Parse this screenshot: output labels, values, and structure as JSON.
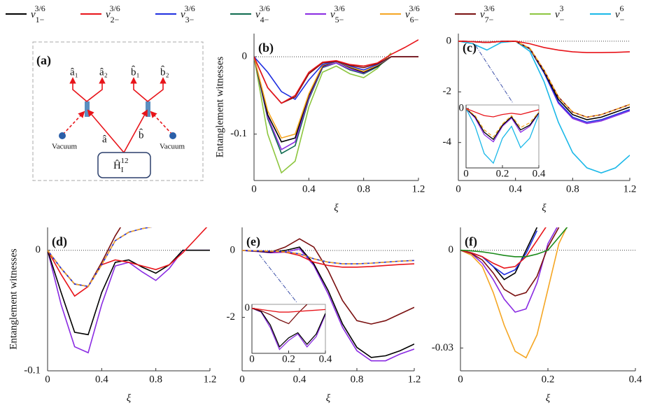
{
  "legend": [
    {
      "name": {
        "base": "v",
        "sub": "1−",
        "sup": "3/6"
      },
      "color": "#000000"
    },
    {
      "name": {
        "base": "v",
        "sub": "2−",
        "sup": "3/6"
      },
      "color": "#e8141a"
    },
    {
      "name": {
        "base": "v",
        "sub": "3−",
        "sup": "3/6"
      },
      "color": "#1f2fe0"
    },
    {
      "name": {
        "base": "v",
        "sub": "4−",
        "sup": "3/6"
      },
      "color": "#0e6b4f"
    },
    {
      "name": {
        "base": "v",
        "sub": "5−",
        "sup": "3/6"
      },
      "color": "#8a2be2"
    },
    {
      "name": {
        "base": "v",
        "sub": "6−",
        "sup": "3/6"
      },
      "color": "#f5a623"
    },
    {
      "name": {
        "base": "v",
        "sub": "7−",
        "sup": "3/6"
      },
      "color": "#7a1010"
    },
    {
      "name": {
        "base": "v",
        "sub": "−",
        "sup": "3"
      },
      "color": "#8dc63f"
    },
    {
      "name": {
        "base": "v",
        "sub": "−",
        "sup": "6"
      },
      "color": "#1ab8e8"
    }
  ],
  "diagram": {
    "label": "(a)",
    "outputs": [
      "â₁",
      "â₂",
      "b̂₁",
      "b̂₂"
    ],
    "modes": [
      "â",
      "b̂"
    ],
    "vacuum": [
      "Vacuum",
      "Vacuum"
    ],
    "hamiltonian": {
      "base": "Ĥ",
      "sub": "I",
      "sup": "12"
    }
  },
  "chart_data": [
    {
      "type": "line",
      "panel": "(b)",
      "ylabel": "Entanglement witnesses",
      "xlabel": "ξ",
      "zero_line": true,
      "x": [
        0,
        0.1,
        0.2,
        0.3,
        0.4,
        0.5,
        0.6,
        0.7,
        0.8,
        0.9,
        1.0,
        1.1,
        1.2
      ],
      "xlim": [
        0,
        1.2
      ],
      "xticks": [
        0,
        0.4,
        0.8,
        1.2
      ],
      "ylim": [
        -0.16,
        0.03
      ],
      "yticks": [
        0,
        -0.1
      ],
      "series": [
        {
          "color": "#8dc63f",
          "values": [
            0,
            -0.1,
            -0.15,
            -0.135,
            -0.065,
            -0.02,
            -0.012,
            -0.022,
            -0.027,
            -0.015,
            0.005,
            null,
            null
          ]
        },
        {
          "color": "#0e6b4f",
          "values": [
            0,
            -0.08,
            -0.125,
            -0.115,
            -0.055,
            -0.014,
            -0.008,
            -0.017,
            -0.022,
            -0.013,
            0,
            0,
            0
          ]
        },
        {
          "color": "#8a2be2",
          "values": [
            0,
            -0.078,
            -0.12,
            -0.11,
            -0.053,
            -0.013,
            -0.008,
            -0.016,
            -0.021,
            -0.012,
            0,
            0,
            0
          ]
        },
        {
          "color": "#000000",
          "values": [
            0,
            -0.075,
            -0.11,
            -0.105,
            -0.05,
            -0.012,
            -0.006,
            -0.014,
            -0.02,
            -0.012,
            0,
            0,
            0
          ]
        },
        {
          "color": "#f5a623",
          "values": [
            0,
            -0.07,
            -0.105,
            -0.1,
            -0.048,
            -0.011,
            -0.006,
            -0.013,
            -0.019,
            -0.011,
            0,
            0,
            0
          ]
        },
        {
          "color": "#1f2fe0",
          "values": [
            0,
            -0.02,
            -0.045,
            -0.055,
            -0.03,
            -0.01,
            -0.006,
            -0.012,
            -0.017,
            -0.01,
            0,
            0,
            0
          ]
        },
        {
          "color": "#7a1010",
          "values": [
            0,
            -0.04,
            -0.06,
            -0.052,
            -0.022,
            -0.008,
            -0.006,
            -0.011,
            -0.014,
            -0.009,
            0,
            0,
            0
          ]
        },
        {
          "color": "#e8141a",
          "values": [
            0,
            -0.04,
            -0.06,
            -0.05,
            -0.02,
            -0.007,
            -0.005,
            -0.01,
            -0.012,
            -0.008,
            0.003,
            0.012,
            0.022
          ]
        }
      ]
    },
    {
      "type": "line",
      "panel": "(c)",
      "xlabel": "ξ",
      "zero_line": true,
      "x": [
        0,
        0.1,
        0.2,
        0.3,
        0.4,
        0.5,
        0.6,
        0.7,
        0.8,
        0.9,
        1.0,
        1.1,
        1.2
      ],
      "xlim": [
        0,
        1.2
      ],
      "xticks": [
        0,
        0.4,
        0.8,
        1.2
      ],
      "ylim": [
        -5.5,
        0.3
      ],
      "yticks": [
        0,
        -2,
        -4
      ],
      "series": [
        {
          "color": "#1ab8e8",
          "values": [
            0,
            -0.1,
            -0.35,
            -0.05,
            0,
            -0.4,
            -1.6,
            -3.2,
            -4.4,
            -5.0,
            -5.2,
            -5.0,
            -4.5
          ]
        },
        {
          "color": "#8a2be2",
          "values": [
            0,
            -0.02,
            -0.05,
            -0.01,
            0,
            -0.3,
            -1.25,
            -2.45,
            -3.05,
            -3.25,
            -3.15,
            -2.95,
            -2.75
          ]
        },
        {
          "color": "#1f2fe0",
          "values": [
            0,
            -0.02,
            -0.05,
            -0.01,
            0,
            -0.3,
            -1.25,
            -2.4,
            -3.0,
            -3.2,
            -3.1,
            -2.9,
            -2.7
          ]
        },
        {
          "color": "#000000",
          "values": [
            0,
            -0.02,
            -0.05,
            -0.01,
            0,
            -0.3,
            -1.2,
            -2.3,
            -2.9,
            -3.1,
            -3.0,
            -2.8,
            -2.6
          ]
        },
        {
          "color": "#7a1010",
          "values": [
            0,
            -0.02,
            -0.05,
            -0.01,
            0,
            -0.28,
            -1.15,
            -2.2,
            -2.8,
            -3.0,
            -2.9,
            -2.7,
            -2.5
          ]
        },
        {
          "color": "#f5a623",
          "dashed": true,
          "values": [
            0,
            -0.02,
            -0.05,
            -0.01,
            0,
            -0.28,
            -1.15,
            -2.2,
            -2.8,
            -3.0,
            -2.9,
            -2.7,
            -2.5
          ]
        },
        {
          "color": "#e8141a",
          "values": [
            0,
            -0.02,
            -0.05,
            -0.01,
            0,
            -0.1,
            -0.25,
            -0.35,
            -0.42,
            -0.45,
            -0.45,
            -0.44,
            -0.42
          ]
        }
      ],
      "inset": {
        "x": [
          0,
          0.05,
          0.1,
          0.15,
          0.2,
          0.25,
          0.3,
          0.35,
          0.4
        ],
        "xlim": [
          0,
          0.4
        ],
        "xticks": [
          0,
          0.2,
          0.4
        ],
        "ylim": [
          -5,
          0.3
        ],
        "yticks": [
          0
        ],
        "series": [
          {
            "color": "#1ab8e8",
            "values": [
              0,
              -1.5,
              -3.8,
              -4.6,
              -2.5,
              -1.5,
              -3.3,
              -2.5,
              -0.5
            ]
          },
          {
            "color": "#8a2be2",
            "values": [
              0,
              -0.8,
              -2.2,
              -2.8,
              -1.5,
              -0.8,
              -2.0,
              -1.5,
              -0.4
            ]
          },
          {
            "color": "#000000",
            "values": [
              0,
              -0.7,
              -2.0,
              -2.6,
              -1.4,
              -0.7,
              -1.8,
              -1.4,
              -0.35
            ]
          },
          {
            "color": "#f5a623",
            "dashed": true,
            "values": [
              0,
              -0.6,
              -1.8,
              -2.4,
              -1.3,
              -0.6,
              -1.6,
              -1.2,
              -0.3
            ]
          },
          {
            "color": "#e8141a",
            "values": [
              0,
              -0.3,
              -0.6,
              -0.7,
              -0.5,
              -0.4,
              -0.5,
              -0.3,
              -0.1
            ]
          }
        ]
      }
    },
    {
      "type": "line",
      "panel": "(d)",
      "ylabel": "Entanglement witnesses",
      "xlabel": "ξ",
      "zero_line": true,
      "x": [
        0,
        0.1,
        0.2,
        0.3,
        0.4,
        0.5,
        0.6,
        0.7,
        0.8,
        0.9,
        1.0,
        1.1,
        1.2
      ],
      "xlim": [
        0,
        1.2
      ],
      "xticks": [
        0,
        0.4,
        0.8,
        1.2
      ],
      "ylim": [
        -0.1,
        0.019
      ],
      "yticks": [
        0,
        -0.1
      ],
      "series": [
        {
          "color": "#8a2be2",
          "values": [
            0,
            -0.045,
            -0.08,
            -0.085,
            -0.045,
            -0.013,
            -0.01,
            -0.018,
            -0.025,
            -0.015,
            0,
            0,
            0
          ]
        },
        {
          "color": "#000000",
          "values": [
            0,
            -0.035,
            -0.068,
            -0.07,
            -0.035,
            -0.01,
            -0.008,
            -0.014,
            -0.019,
            -0.012,
            0,
            0,
            0
          ]
        },
        {
          "color": "#e8141a",
          "values": [
            0,
            -0.02,
            -0.038,
            -0.03,
            -0.012,
            -0.008,
            -0.01,
            -0.013,
            -0.016,
            -0.012,
            -0.002,
            0.01,
            0.022
          ]
        },
        {
          "color": "#7a1010",
          "values": [
            0,
            -0.015,
            -0.028,
            -0.03,
            -0.01,
            0.012,
            0.03,
            null,
            null,
            null,
            null,
            null,
            null
          ]
        },
        {
          "color": "#1f2fe0",
          "values": [
            0,
            -0.015,
            -0.028,
            -0.03,
            -0.012,
            0.008,
            0.015,
            0.018,
            0.02,
            null,
            null,
            null,
            null
          ]
        },
        {
          "color": "#f5a623",
          "dashed": true,
          "values": [
            0,
            -0.015,
            -0.028,
            -0.03,
            -0.012,
            0.008,
            0.015,
            0.018,
            0.02,
            null,
            null,
            null,
            null
          ]
        }
      ]
    },
    {
      "type": "line",
      "panel": "(e)",
      "xlabel": "ξ",
      "zero_line": true,
      "x": [
        0,
        0.1,
        0.2,
        0.3,
        0.4,
        0.5,
        0.6,
        0.7,
        0.8,
        0.9,
        1.0,
        1.1,
        1.2
      ],
      "xlim": [
        0,
        1.2
      ],
      "xticks": [
        0,
        0.4,
        0.8,
        1.2
      ],
      "ylim": [
        -3.6,
        0.69
      ],
      "yticks": [
        0,
        -2
      ],
      "series": [
        {
          "color": "#7a1010",
          "values": [
            0,
            -0.02,
            -0.05,
            0.1,
            0.35,
            0.1,
            -0.6,
            -1.5,
            -2.1,
            -2.2,
            -2.1,
            -1.9,
            -1.7
          ]
        },
        {
          "color": "#8a2be2",
          "values": [
            0,
            -0.03,
            -0.07,
            -0.05,
            0.05,
            -0.45,
            -1.3,
            -2.3,
            -3.0,
            -3.3,
            -3.3,
            -3.1,
            -2.95
          ]
        },
        {
          "color": "#000000",
          "values": [
            0,
            -0.02,
            -0.05,
            0,
            0.1,
            -0.4,
            -1.2,
            -2.2,
            -2.9,
            -3.2,
            -3.15,
            -3.0,
            -2.8
          ]
        },
        {
          "color": "#e8141a",
          "values": [
            0,
            -0.01,
            -0.03,
            -0.05,
            -0.15,
            -0.35,
            -0.45,
            -0.5,
            -0.5,
            -0.48,
            -0.45,
            -0.42,
            -0.4
          ]
        },
        {
          "color": "#1f2fe0",
          "values": [
            0,
            -0.01,
            -0.02,
            -0.04,
            -0.1,
            -0.25,
            -0.35,
            -0.4,
            -0.4,
            -0.38,
            -0.35,
            -0.32,
            -0.3
          ]
        },
        {
          "color": "#f5a623",
          "dashed": true,
          "values": [
            0,
            -0.01,
            -0.02,
            -0.04,
            -0.1,
            -0.25,
            -0.35,
            -0.4,
            -0.4,
            -0.38,
            -0.35,
            -0.32,
            -0.3
          ]
        }
      ],
      "inset": {
        "x": [
          0,
          0.05,
          0.1,
          0.15,
          0.2,
          0.25,
          0.3,
          0.35,
          0.4
        ],
        "xlim": [
          0,
          0.4
        ],
        "xticks": [
          0,
          0.2,
          0.4
        ],
        "ylim": [
          -3.5,
          0.3
        ],
        "yticks": [
          0
        ],
        "series": [
          {
            "color": "#8a2be2",
            "values": [
              0,
              -0.3,
              -1.5,
              -3.2,
              -2.5,
              -2.0,
              -3.0,
              -2.2,
              -0.5
            ]
          },
          {
            "color": "#000000",
            "values": [
              0,
              -0.25,
              -1.3,
              -3.0,
              -2.3,
              -1.9,
              -2.8,
              -2.0,
              -0.4
            ]
          },
          {
            "color": "#7a1010",
            "values": [
              0,
              -0.2,
              -0.5,
              -0.9,
              -1.2,
              -0.4,
              0.3,
              null,
              null
            ]
          },
          {
            "color": "#e8141a",
            "values": [
              0,
              -0.1,
              -0.2,
              -0.3,
              -0.3,
              -0.25,
              -0.2,
              -0.15,
              -0.1
            ]
          }
        ]
      }
    },
    {
      "type": "line",
      "panel": "(f)",
      "xlabel": "ξ",
      "zero_line": true,
      "x": [
        0,
        0.025,
        0.05,
        0.075,
        0.1,
        0.125,
        0.15,
        0.175,
        0.2,
        0.225,
        0.25
      ],
      "xlim": [
        0,
        0.4
      ],
      "xticks": [
        0,
        0.2,
        0.4
      ],
      "ylim": [
        -0.037,
        0.007
      ],
      "yticks": [
        0,
        -0.03
      ],
      "series": [
        {
          "color": "#f5a623",
          "values": [
            0,
            -0.0015,
            -0.005,
            -0.013,
            -0.023,
            -0.031,
            -0.033,
            -0.026,
            -0.012,
            0.002,
            0.009
          ]
        },
        {
          "color": "#8a2be2",
          "values": [
            0,
            -0.001,
            -0.004,
            -0.009,
            -0.015,
            -0.019,
            -0.018,
            -0.01,
            0.002,
            0.008,
            null
          ]
        },
        {
          "color": "#7a1010",
          "values": [
            0,
            -0.001,
            -0.003,
            -0.007,
            -0.012,
            -0.014,
            -0.013,
            -0.008,
            0.001,
            0.007,
            null
          ]
        },
        {
          "color": "#000000",
          "values": [
            0,
            -0.0008,
            -0.002,
            -0.005,
            -0.009,
            -0.007,
            0,
            0.007,
            null,
            null,
            null
          ]
        },
        {
          "color": "#1f2fe0",
          "values": [
            0,
            -0.0008,
            -0.002,
            -0.005,
            -0.0075,
            -0.006,
            -0.001,
            0.006,
            null,
            null,
            null
          ]
        },
        {
          "color": "#e8141a",
          "values": [
            0,
            -0.0008,
            -0.002,
            -0.004,
            -0.0055,
            -0.005,
            -0.002,
            0.003,
            0.008,
            null,
            null
          ]
        },
        {
          "color": "#1a8a1a",
          "values": [
            0,
            -0.0002,
            -0.0005,
            -0.001,
            -0.0016,
            -0.002,
            -0.002,
            -0.0012,
            0,
            0.004,
            0.008
          ]
        }
      ]
    }
  ]
}
